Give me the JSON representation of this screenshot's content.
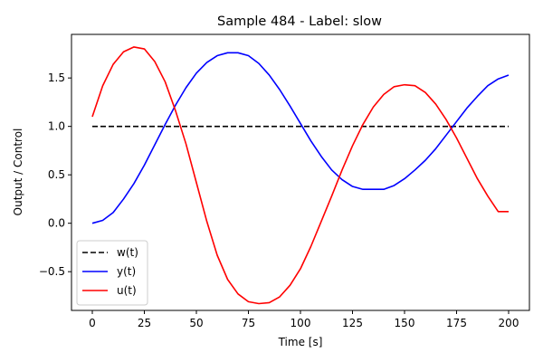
{
  "chart_data": {
    "type": "line",
    "title": "Sample 484 - Label: slow",
    "xlabel": "Time [s]",
    "ylabel": "Output / Control",
    "xlim": [
      -10,
      210
    ],
    "ylim": [
      -0.9,
      1.95
    ],
    "xticks": [
      0,
      25,
      50,
      75,
      100,
      125,
      150,
      175,
      200
    ],
    "xtick_labels": [
      "0",
      "25",
      "50",
      "75",
      "100",
      "125",
      "150",
      "175",
      "200"
    ],
    "yticks": [
      -0.5,
      0.0,
      0.5,
      1.0,
      1.5
    ],
    "ytick_labels": [
      "−0.5",
      "0.0",
      "0.5",
      "1.0",
      "1.5"
    ],
    "grid": false,
    "legend_position": "lower-left",
    "series": [
      {
        "name": "w(t)",
        "color": "#000000",
        "style": "dashed",
        "x": [
          0,
          200
        ],
        "y": [
          1.0,
          1.0
        ]
      },
      {
        "name": "y(t)",
        "color": "#0000ff",
        "style": "solid",
        "x": [
          0,
          5,
          10,
          15,
          20,
          25,
          30,
          35,
          40,
          45,
          50,
          55,
          60,
          65,
          70,
          75,
          80,
          85,
          90,
          95,
          100,
          105,
          110,
          115,
          120,
          125,
          130,
          135,
          140,
          145,
          150,
          155,
          160,
          165,
          170,
          175,
          180,
          185,
          190,
          195,
          200
        ],
        "y": [
          0.0,
          0.03,
          0.11,
          0.25,
          0.41,
          0.6,
          0.81,
          1.02,
          1.22,
          1.4,
          1.55,
          1.66,
          1.73,
          1.76,
          1.76,
          1.73,
          1.65,
          1.53,
          1.38,
          1.21,
          1.03,
          0.85,
          0.69,
          0.55,
          0.45,
          0.38,
          0.35,
          0.35,
          0.35,
          0.39,
          0.46,
          0.55,
          0.65,
          0.77,
          0.91,
          1.05,
          1.19,
          1.31,
          1.42,
          1.49,
          1.53
        ]
      },
      {
        "name": "u(t)",
        "color": "#ff0000",
        "style": "solid",
        "x": [
          0,
          5,
          10,
          15,
          20,
          25,
          30,
          35,
          40,
          45,
          50,
          55,
          60,
          65,
          70,
          75,
          80,
          85,
          90,
          95,
          100,
          105,
          110,
          115,
          120,
          125,
          130,
          135,
          140,
          145,
          150,
          155,
          160,
          165,
          170,
          175,
          180,
          185,
          190,
          195,
          200
        ],
        "y": [
          1.1,
          1.42,
          1.64,
          1.77,
          1.82,
          1.8,
          1.67,
          1.46,
          1.16,
          0.82,
          0.42,
          0.02,
          -0.33,
          -0.58,
          -0.73,
          -0.81,
          -0.83,
          -0.82,
          -0.76,
          -0.64,
          -0.47,
          -0.24,
          0.02,
          0.28,
          0.55,
          0.8,
          1.02,
          1.2,
          1.33,
          1.41,
          1.43,
          1.42,
          1.35,
          1.23,
          1.07,
          0.88,
          0.67,
          0.46,
          0.28,
          0.12,
          0.12
        ]
      }
    ]
  }
}
